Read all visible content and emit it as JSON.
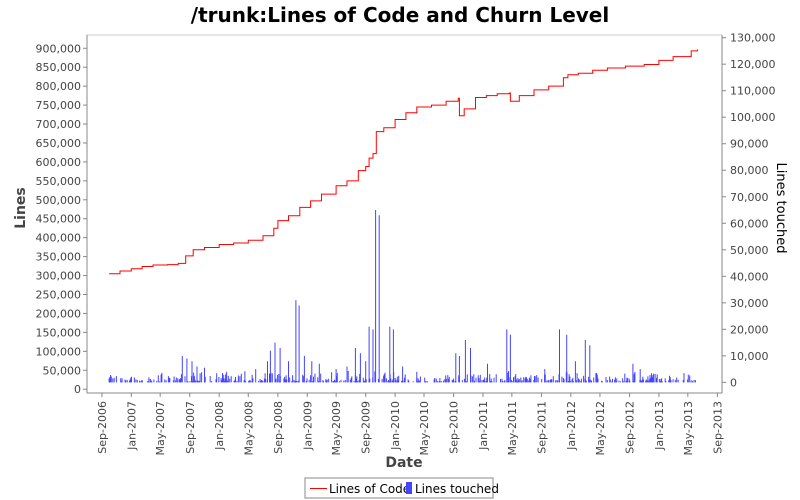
{
  "chart_data": {
    "type": "line",
    "title": "/trunk:Lines of Code and Churn Level",
    "xlabel": "Date",
    "ylabel": "Lines",
    "y2label": "Lines touched",
    "xlim": [
      "2006-07-01",
      "2013-09-20"
    ],
    "ylim": [
      -10000,
      935000
    ],
    "y2lim": [
      -4000,
      131000
    ],
    "x_ticks": [
      "Sep-2006",
      "Jan-2007",
      "May-2007",
      "Sep-2007",
      "Jan-2008",
      "May-2008",
      "Sep-2008",
      "Jan-2009",
      "May-2009",
      "Sep-2009",
      "Jan-2010",
      "May-2010",
      "Sep-2010",
      "Jan-2011",
      "May-2011",
      "Sep-2011",
      "Jan-2012",
      "May-2012",
      "Sep-2012",
      "Jan-2013",
      "May-2013",
      "Sep-2013"
    ],
    "y_ticks": [
      "0",
      "50,000",
      "100,000",
      "150,000",
      "200,000",
      "250,000",
      "300,000",
      "350,000",
      "400,000",
      "450,000",
      "500,000",
      "550,000",
      "600,000",
      "650,000",
      "700,000",
      "750,000",
      "800,000",
      "850,000",
      "900,000"
    ],
    "y2_ticks": [
      "0",
      "10,000",
      "20,000",
      "30,000",
      "40,000",
      "50,000",
      "60,000",
      "70,000",
      "80,000",
      "90,000",
      "100,000",
      "110,000",
      "120,000",
      "130,000"
    ],
    "grid": false,
    "legend": "bottom",
    "series": [
      {
        "name": "Lines of Code",
        "color": "#ff0000",
        "axis": "left",
        "points": [
          [
            "2006-10-01",
            305000
          ],
          [
            "2006-11-15",
            312000
          ],
          [
            "2007-01-01",
            318000
          ],
          [
            "2007-02-15",
            324000
          ],
          [
            "2007-04-01",
            328000
          ],
          [
            "2007-06-01",
            329000
          ],
          [
            "2007-07-15",
            332000
          ],
          [
            "2007-08-15",
            352000
          ],
          [
            "2007-09-15",
            368000
          ],
          [
            "2007-11-01",
            374000
          ],
          [
            "2008-01-01",
            382000
          ],
          [
            "2008-03-01",
            386000
          ],
          [
            "2008-05-01",
            393000
          ],
          [
            "2008-07-01",
            405000
          ],
          [
            "2008-08-15",
            425000
          ],
          [
            "2008-09-01",
            445000
          ],
          [
            "2008-10-15",
            458000
          ],
          [
            "2008-12-01",
            480000
          ],
          [
            "2009-01-15",
            497000
          ],
          [
            "2009-03-01",
            515000
          ],
          [
            "2009-05-01",
            537000
          ],
          [
            "2009-06-15",
            550000
          ],
          [
            "2009-08-01",
            577000
          ],
          [
            "2009-09-01",
            588000
          ],
          [
            "2009-09-15",
            610000
          ],
          [
            "2009-10-01",
            622000
          ],
          [
            "2009-10-15",
            680000
          ],
          [
            "2009-11-15",
            690000
          ],
          [
            "2010-01-01",
            712000
          ],
          [
            "2010-02-15",
            730000
          ],
          [
            "2010-04-01",
            745000
          ],
          [
            "2010-06-01",
            750000
          ],
          [
            "2010-08-01",
            760000
          ],
          [
            "2010-09-20",
            768000
          ],
          [
            "2010-09-25",
            722000
          ],
          [
            "2010-10-15",
            740000
          ],
          [
            "2010-12-01",
            770000
          ],
          [
            "2011-01-15",
            775000
          ],
          [
            "2011-03-01",
            780000
          ],
          [
            "2011-04-20",
            782000
          ],
          [
            "2011-04-25",
            760000
          ],
          [
            "2011-06-01",
            775000
          ],
          [
            "2011-08-01",
            790000
          ],
          [
            "2011-10-01",
            800000
          ],
          [
            "2011-12-01",
            822000
          ],
          [
            "2011-12-20",
            830000
          ],
          [
            "2012-02-01",
            834000
          ],
          [
            "2012-04-01",
            842000
          ],
          [
            "2012-06-01",
            848000
          ],
          [
            "2012-08-15",
            853000
          ],
          [
            "2012-11-01",
            857000
          ],
          [
            "2013-01-01",
            868000
          ],
          [
            "2013-03-01",
            878000
          ],
          [
            "2013-05-15",
            893000
          ],
          [
            "2013-06-10",
            897000
          ]
        ]
      },
      {
        "name": "Lines touched",
        "color": "#4444ff",
        "axis": "right",
        "type": "bar",
        "spikes": [
          [
            "2007-08-01",
            10000
          ],
          [
            "2007-08-20",
            9000
          ],
          [
            "2007-09-10",
            8000
          ],
          [
            "2007-10-01",
            6000
          ],
          [
            "2007-11-01",
            5500
          ],
          [
            "2008-02-01",
            4000
          ],
          [
            "2008-06-01",
            5000
          ],
          [
            "2008-07-20",
            8000
          ],
          [
            "2008-08-01",
            12000
          ],
          [
            "2008-08-20",
            15000
          ],
          [
            "2008-09-10",
            13000
          ],
          [
            "2008-10-15",
            8000
          ],
          [
            "2008-11-15",
            31000
          ],
          [
            "2008-11-28",
            29000
          ],
          [
            "2008-12-20",
            10000
          ],
          [
            "2009-01-20",
            8000
          ],
          [
            "2009-02-20",
            7000
          ],
          [
            "2009-05-01",
            5000
          ],
          [
            "2009-06-15",
            6000
          ],
          [
            "2009-07-20",
            13000
          ],
          [
            "2009-08-10",
            11000
          ],
          [
            "2009-09-01",
            8000
          ],
          [
            "2009-09-15",
            21000
          ],
          [
            "2009-10-01",
            20000
          ],
          [
            "2009-10-12",
            65000
          ],
          [
            "2009-10-27",
            63000
          ],
          [
            "2009-12-10",
            21000
          ],
          [
            "2009-12-25",
            20000
          ],
          [
            "2010-02-01",
            6000
          ],
          [
            "2010-04-01",
            4000
          ],
          [
            "2010-09-10",
            11000
          ],
          [
            "2010-09-25",
            10000
          ],
          [
            "2010-10-20",
            16000
          ],
          [
            "2010-11-10",
            13000
          ],
          [
            "2011-01-20",
            7000
          ],
          [
            "2011-04-10",
            20000
          ],
          [
            "2011-04-25",
            18000
          ],
          [
            "2011-09-15",
            5000
          ],
          [
            "2011-11-15",
            20000
          ],
          [
            "2011-12-15",
            18000
          ],
          [
            "2012-01-20",
            8000
          ],
          [
            "2012-03-01",
            16000
          ],
          [
            "2012-03-20",
            14000
          ],
          [
            "2012-09-15",
            7000
          ],
          [
            "2012-10-15",
            5000
          ],
          [
            "2013-04-15",
            3500
          ]
        ]
      }
    ]
  }
}
